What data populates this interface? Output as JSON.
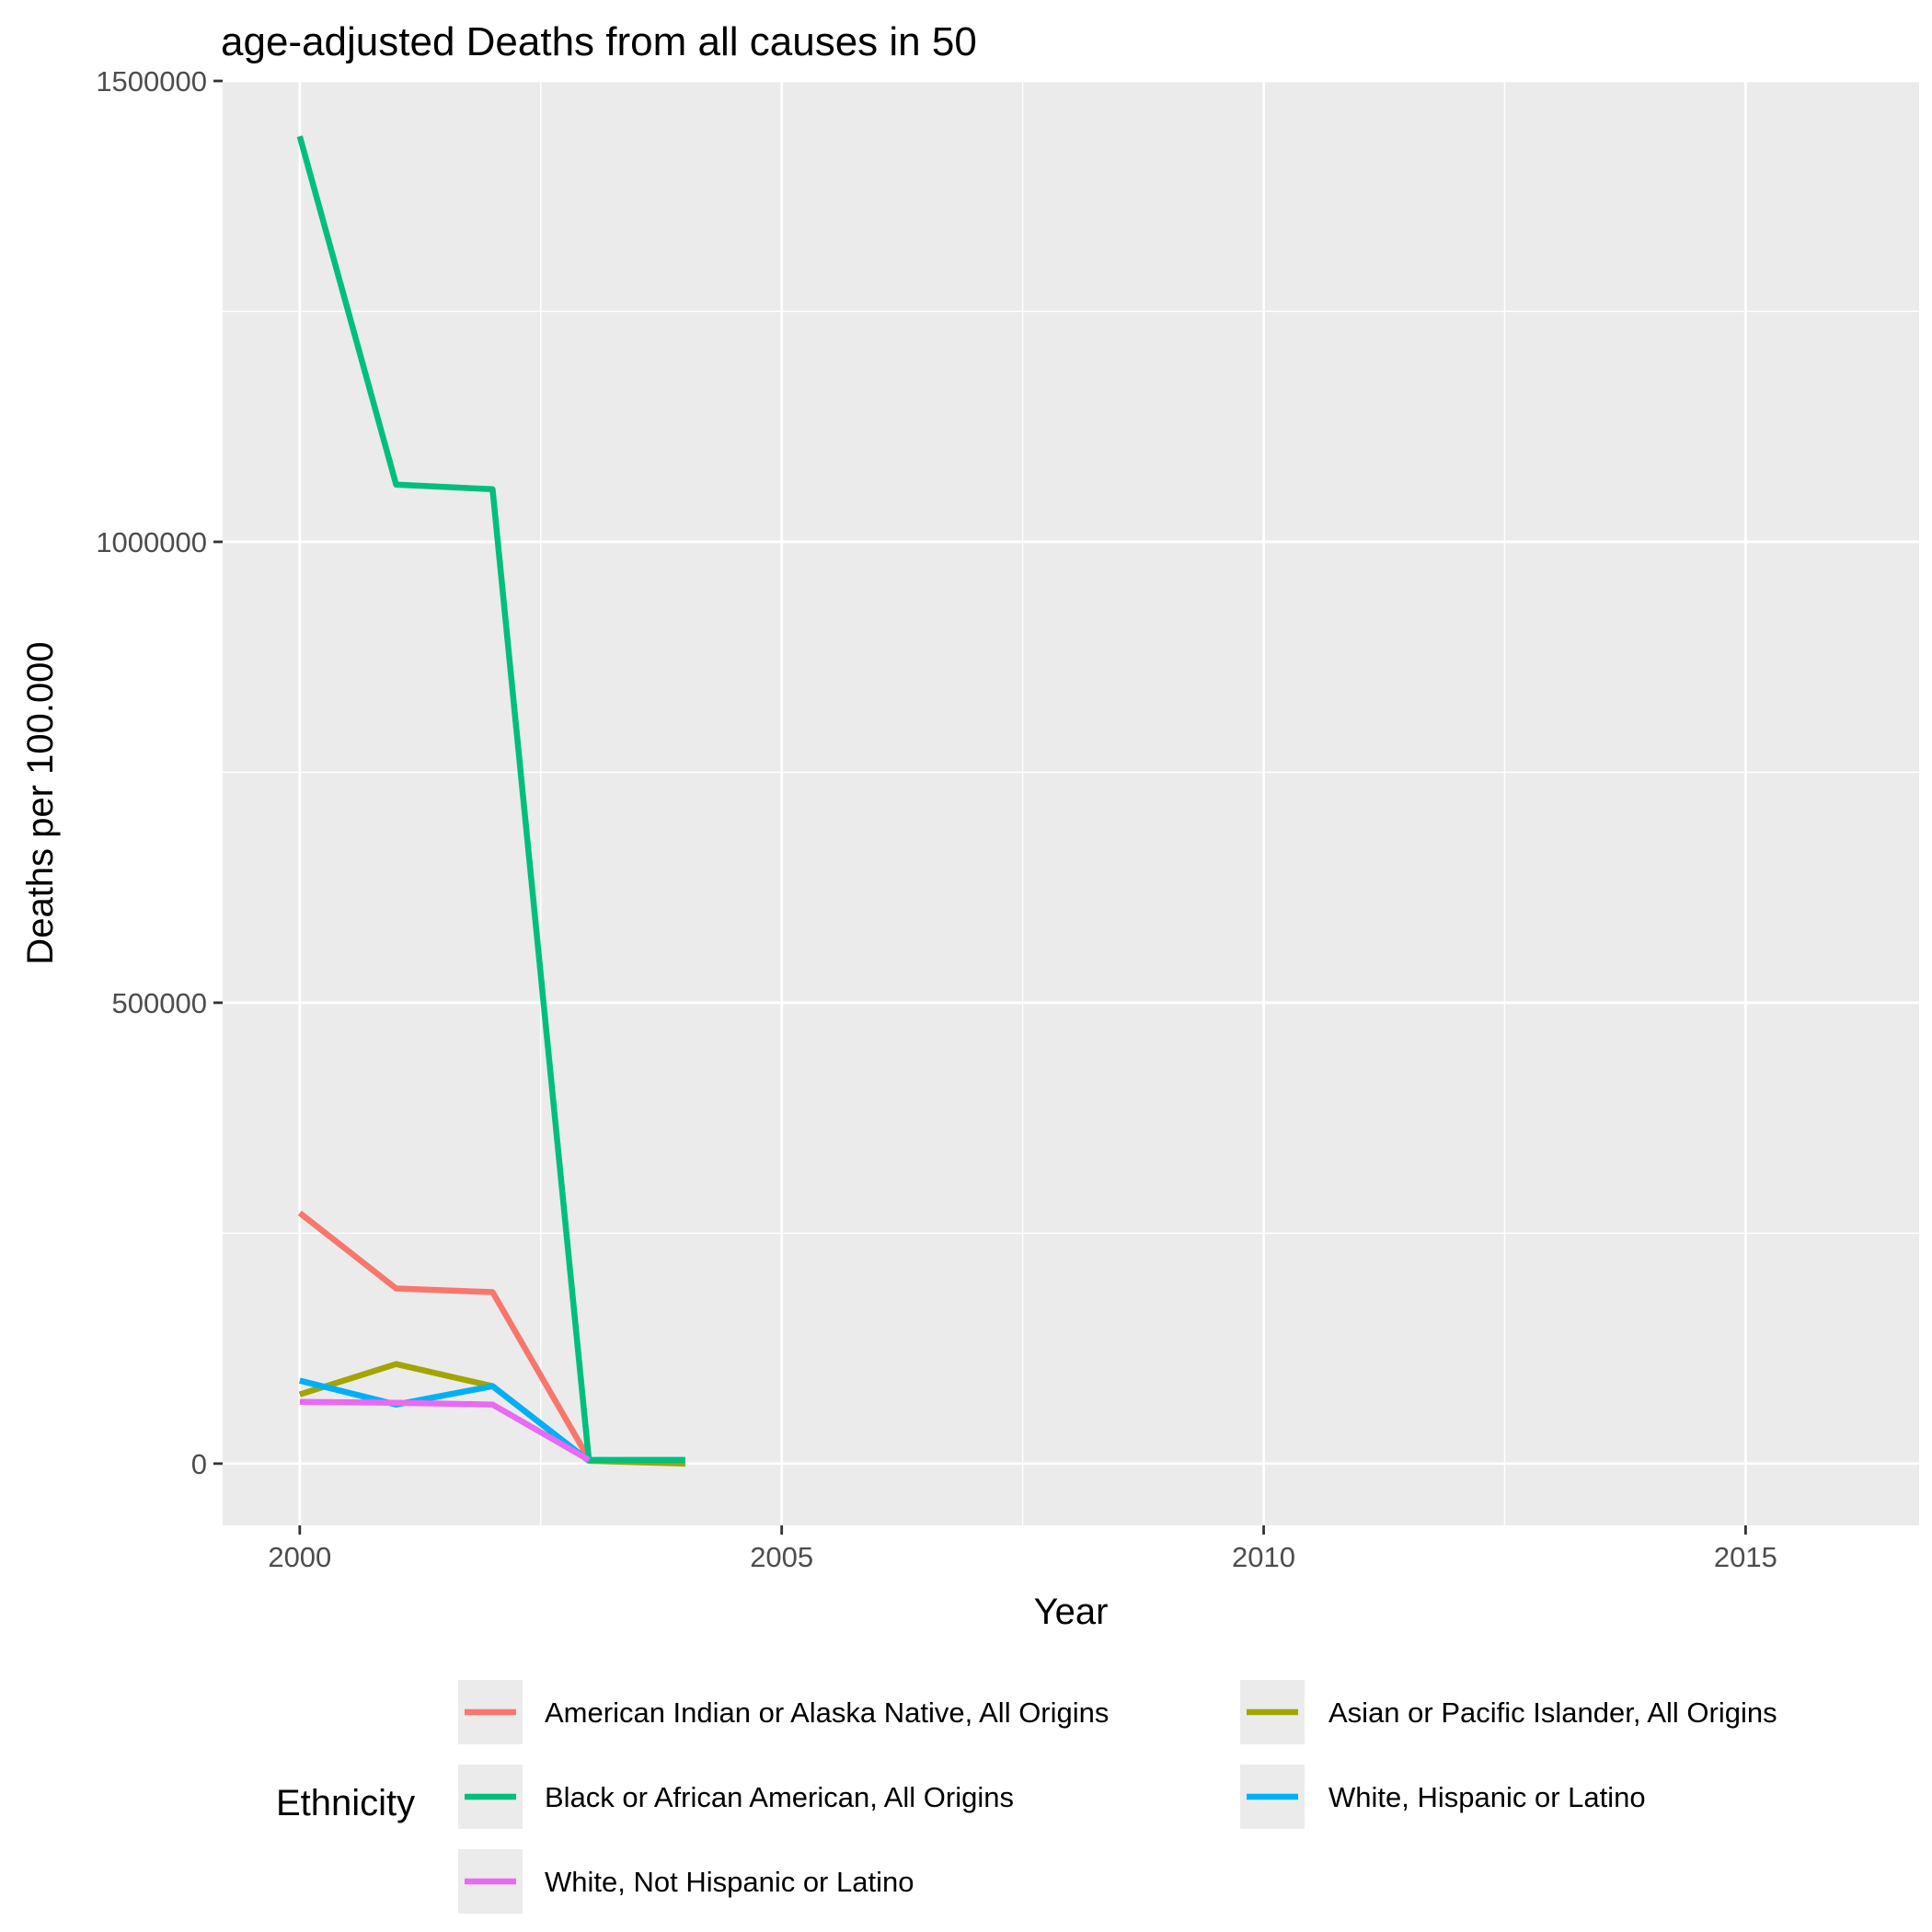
{
  "chart_data": {
    "type": "line",
    "title": "age-adjusted Deaths from all causes in 50",
    "xlabel": "Year",
    "ylabel": "Deaths per 100.000",
    "xlim": [
      1999.2,
      2016.8
    ],
    "ylim": [
      -67000,
      1500000
    ],
    "x_ticks": [
      2000,
      2005,
      2010,
      2015
    ],
    "y_ticks": [
      0,
      500000,
      1000000,
      1500000
    ],
    "x_tick_labels": [
      "2000",
      "2005",
      "2010",
      "2015"
    ],
    "y_tick_labels": [
      "0",
      "500000",
      "1000000",
      "1500000"
    ],
    "grid": true,
    "legend_title": "Ethnicity",
    "legend_position": "bottom",
    "series": [
      {
        "name": "American Indian or Alaska Native, All Origins",
        "color": "#F8766D",
        "x": [
          2000,
          2001,
          2002,
          2003
        ],
        "y": [
          272000,
          190000,
          186000,
          5000
        ]
      },
      {
        "name": "Asian or Pacific Islander, All Origins",
        "color": "#A3A500",
        "x": [
          2000,
          2001,
          2002,
          2003,
          2004
        ],
        "y": [
          75000,
          108000,
          84000,
          3000,
          0
        ]
      },
      {
        "name": "Black or African American, All Origins",
        "color": "#00BF7D",
        "x": [
          2000,
          2001,
          2002,
          2003,
          2004
        ],
        "y": [
          1440000,
          1062000,
          1057000,
          4000,
          4000
        ]
      },
      {
        "name": "White, Hispanic or Latino",
        "color": "#00B0F6",
        "x": [
          2000,
          2001,
          2002,
          2003
        ],
        "y": [
          90000,
          64000,
          84000,
          3000
        ]
      },
      {
        "name": "White, Not Hispanic or Latino",
        "color": "#E76BF3",
        "x": [
          2000,
          2001,
          2002,
          2003
        ],
        "y": [
          67000,
          66000,
          64000,
          4000
        ]
      }
    ]
  }
}
